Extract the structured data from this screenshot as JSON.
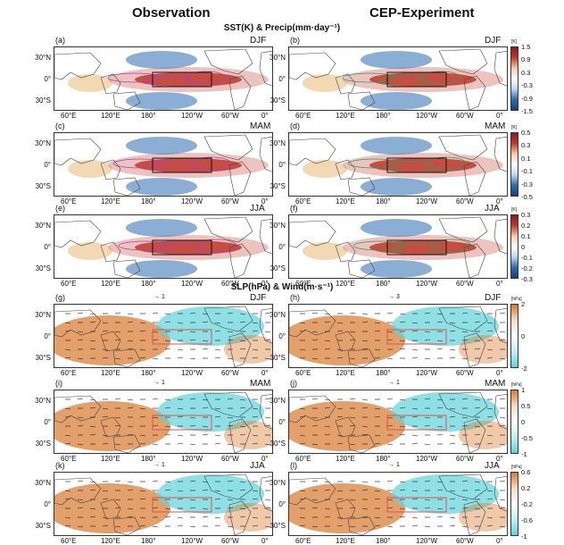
{
  "columns": [
    "Observation",
    "CEP-Experiment"
  ],
  "sections": [
    "SST(K) & Precip(mm·day⁻¹)",
    "SLP(hPa) & Wind(m·s⁻¹)"
  ],
  "lat_labels": [
    "30°N",
    "0°",
    "30°S"
  ],
  "lon_labels": [
    "60°E",
    "120°E",
    "180°",
    "120°W",
    "60°W",
    "0°"
  ],
  "panels": [
    {
      "label": "(a)",
      "season": "DJF"
    },
    {
      "label": "(b)",
      "season": "DJF"
    },
    {
      "label": "(c)",
      "season": "MAM"
    },
    {
      "label": "(d)",
      "season": "MAM"
    },
    {
      "label": "(e)",
      "season": "JJA"
    },
    {
      "label": "(f)",
      "season": "JJA"
    },
    {
      "label": "(g)",
      "season": "DJF"
    },
    {
      "label": "(h)",
      "season": "DJF"
    },
    {
      "label": "(i)",
      "season": "MAM"
    },
    {
      "label": "(j)",
      "season": "MAM"
    },
    {
      "label": "(k)",
      "season": "JJA"
    },
    {
      "label": "(l)",
      "season": "JJA"
    }
  ],
  "colorbars": [
    {
      "unit": "[K]",
      "ticks": [
        "1.5",
        "0.9",
        "0.3",
        "-0.3",
        "-0.9",
        "-1.5"
      ]
    },
    {
      "unit": "[K]",
      "ticks": [
        "0.5",
        "0.3",
        "0.1",
        "-0.1",
        "-0.3",
        "-0.5"
      ]
    },
    {
      "unit": "[K]",
      "ticks": [
        "0.3",
        "0.2",
        "0.1",
        "0",
        "-0.1",
        "-0.2",
        "-0.3"
      ]
    },
    {
      "unit": "[hPa]",
      "ticks": [
        "2",
        "0",
        "-2"
      ]
    },
    {
      "unit": "[hPa]",
      "ticks": [
        "1",
        "0.5",
        "0",
        "-0.5",
        "-1"
      ]
    },
    {
      "unit": "[hPa]",
      "ticks": [
        "0.6",
        "0.2",
        "-0.2",
        "-0.6",
        "-1"
      ]
    }
  ],
  "reference_vectors": [
    "1",
    "3",
    "1",
    "1",
    "1",
    "1"
  ],
  "colors": {
    "warm": "#c0392b",
    "orange": "#d9772b",
    "cold": "#2b6cb0",
    "cyan": "#5fd3d8",
    "purple": "#b03fb5",
    "green": "#2e9e5a",
    "box_sst": "#111111",
    "box_slp": "#e05050"
  }
}
